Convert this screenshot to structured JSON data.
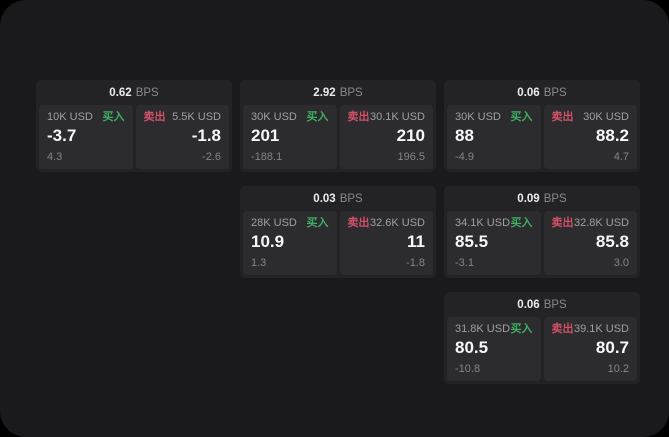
{
  "labels": {
    "bps_unit": "BPS",
    "buy": "买入",
    "sell": "卖出"
  },
  "colors": {
    "background": "#000000",
    "window": "#1a1a1c",
    "card": "#232325",
    "panel": "#2c2c2e",
    "buy_green": "#3fae63",
    "sell_red": "#d05068"
  },
  "cards": [
    {
      "bps": "0.62",
      "buy": {
        "amount": "10K USD",
        "price": "-3.7",
        "sub": "4.3"
      },
      "sell": {
        "amount": "5.5K USD",
        "price": "-1.8",
        "sub": "-2.6"
      }
    },
    {
      "bps": "2.92",
      "buy": {
        "amount": "30K USD",
        "price": "201",
        "sub": "-188.1"
      },
      "sell": {
        "amount": "30.1K USD",
        "price": "210",
        "sub": "196.5"
      }
    },
    {
      "bps": "0.06",
      "buy": {
        "amount": "30K USD",
        "price": "88",
        "sub": "-4.9"
      },
      "sell": {
        "amount": "30K USD",
        "price": "88.2",
        "sub": "4.7"
      }
    },
    {
      "bps": "0.03",
      "buy": {
        "amount": "28K USD",
        "price": "10.9",
        "sub": "1.3"
      },
      "sell": {
        "amount": "32.6K USD",
        "price": "11",
        "sub": "-1.8"
      }
    },
    {
      "bps": "0.09",
      "buy": {
        "amount": "34.1K USD",
        "price": "85.5",
        "sub": "-3.1"
      },
      "sell": {
        "amount": "32.8K USD",
        "price": "85.8",
        "sub": "3.0"
      }
    },
    {
      "bps": "0.06",
      "buy": {
        "amount": "31.8K USD",
        "price": "80.5",
        "sub": "-10.8"
      },
      "sell": {
        "amount": "39.1K USD",
        "price": "80.7",
        "sub": "10.2"
      }
    }
  ]
}
